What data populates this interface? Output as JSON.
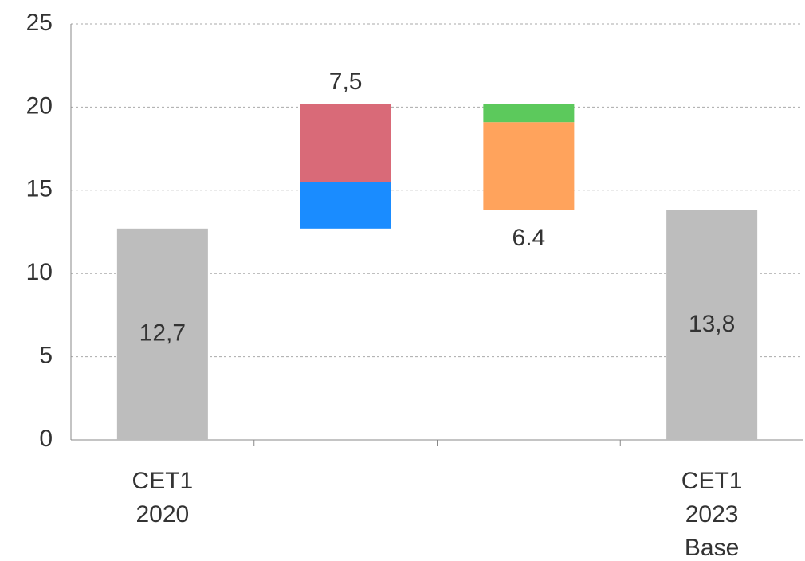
{
  "chart_data": {
    "type": "waterfall",
    "categories": [
      "CET1 2020",
      null,
      null,
      "CET1 2023 Base"
    ],
    "series": [
      {
        "color": "#bdbdbd",
        "total": true,
        "values": [
          12.7,
          null,
          null,
          13.8
        ]
      },
      {
        "color": "#1a8cff",
        "values": [
          null,
          2.8,
          null,
          null
        ]
      },
      {
        "color": "#d96a78",
        "values": [
          null,
          4.7,
          null,
          null
        ]
      },
      {
        "color": "#ffa35c",
        "values": [
          null,
          null,
          -5.3,
          null
        ]
      },
      {
        "color": "#5cc95c",
        "values": [
          null,
          null,
          -1.1,
          null
        ]
      }
    ],
    "totals": {
      "values": [
        12.7,
        7.5,
        6.4,
        13.8
      ],
      "value_labels": [
        "12,7",
        "7,5",
        "6.4",
        "13,8"
      ]
    },
    "ylim": [
      0,
      25
    ],
    "yticks": [
      0,
      5,
      10,
      15,
      20,
      25
    ],
    "grid": true
  }
}
